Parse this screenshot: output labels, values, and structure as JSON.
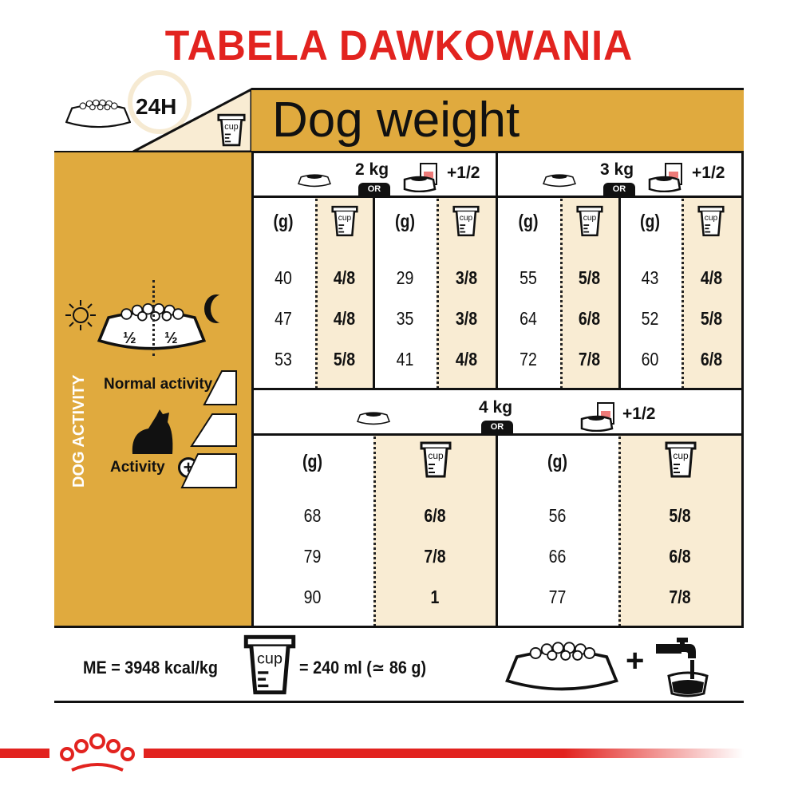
{
  "title": "TABELA DAWKOWANIA",
  "header": {
    "period": "24H",
    "dog_weight": "Dog weight",
    "cup_label": "cup"
  },
  "sidebar": {
    "half_left": "½",
    "half_right": "½",
    "vertical_label": "DOG ACTIVITY",
    "normal_activity": "Normal activity",
    "activity_plus": "Activity"
  },
  "table": {
    "grams_header": "(g)",
    "or_label": "OR",
    "wet_addition": "+1/2",
    "weights": [
      {
        "label": "2 kg",
        "columns": [
          {
            "grams": [
              "40",
              "47",
              "53"
            ],
            "cups": [
              "4/8",
              "4/8",
              "5/8"
            ]
          },
          {
            "grams": [
              "29",
              "35",
              "41"
            ],
            "cups": [
              "3/8",
              "3/8",
              "4/8"
            ]
          }
        ]
      },
      {
        "label": "3 kg",
        "columns": [
          {
            "grams": [
              "55",
              "64",
              "72"
            ],
            "cups": [
              "5/8",
              "6/8",
              "7/8"
            ]
          },
          {
            "grams": [
              "43",
              "52",
              "60"
            ],
            "cups": [
              "4/8",
              "5/8",
              "6/8"
            ]
          }
        ]
      },
      {
        "label": "4 kg",
        "columns": [
          {
            "grams": [
              "68",
              "79",
              "90"
            ],
            "cups": [
              "6/8",
              "7/8",
              "1"
            ]
          },
          {
            "grams": [
              "56",
              "66",
              "77"
            ],
            "cups": [
              "5/8",
              "6/8",
              "7/8"
            ]
          }
        ]
      }
    ]
  },
  "footer": {
    "energy": "ME = 3948 kcal/kg",
    "cup_equivalent": "= 240 ml (≃ 86 g)",
    "plus": "+"
  },
  "colors": {
    "brand_red": "#e2231f",
    "gold": "#e0aa3e",
    "cream": "#f9ecd3"
  }
}
